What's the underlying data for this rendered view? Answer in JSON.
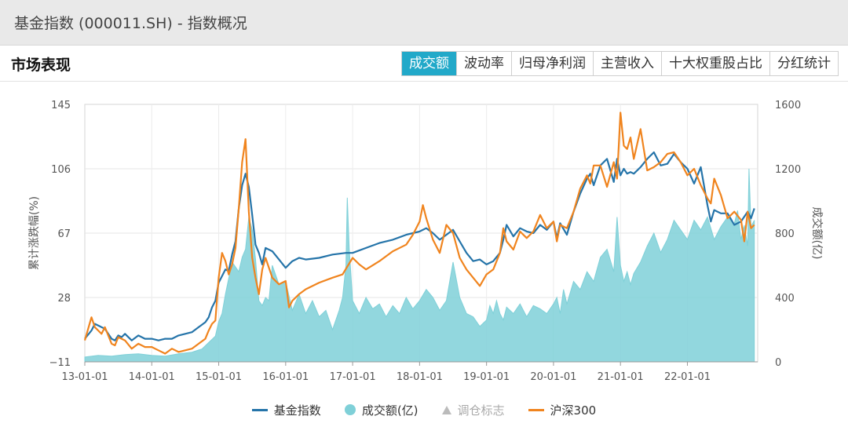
{
  "window": {
    "title": "基金指数 (000011.SH) - 指数概况"
  },
  "section": {
    "title": "市场表现"
  },
  "tabs": [
    {
      "label": "成交额",
      "active": true
    },
    {
      "label": "波动率",
      "active": false
    },
    {
      "label": "归母净利润",
      "active": false
    },
    {
      "label": "主营收入",
      "active": false
    },
    {
      "label": "十大权重股占比",
      "active": false
    },
    {
      "label": "分红统计",
      "active": false
    }
  ],
  "colors": {
    "index": "#2574a9",
    "volume": "#7fd0d8",
    "hs300": "#f0841e",
    "accent": "#22a9c9"
  },
  "legend": [
    {
      "label": "基金指数",
      "icon": "line",
      "color": "#2574a9"
    },
    {
      "label": "成交额(亿)",
      "icon": "dot",
      "color": "#7fd0d8"
    },
    {
      "label": "调仓标志",
      "icon": "triangle",
      "color": "#bbbbbb"
    },
    {
      "label": "沪深300",
      "icon": "line",
      "color": "#f0841e"
    }
  ],
  "chart_data": {
    "type": "line",
    "ylabel": "累计涨跌幅(%)",
    "ylabel_right": "成交额(亿)",
    "ylim": [
      -11,
      145
    ],
    "ylim_right": [
      0,
      1600
    ],
    "yticks_left": [
      "145",
      "106",
      "67",
      "28",
      "−11"
    ],
    "yticks_right": [
      "1600",
      "1200",
      "800",
      "400",
      "0"
    ],
    "xlim": [
      2013.0,
      2023.05
    ],
    "xticks": [
      "13-01-01",
      "14-01-01",
      "15-01-01",
      "16-01-01",
      "17-01-01",
      "18-01-01",
      "19-01-01",
      "20-01-01",
      "21-01-01",
      "22-01-01"
    ],
    "grid": true,
    "legend_position": "bottom",
    "series": [
      {
        "name": "基金指数",
        "axis": "left",
        "style": "line",
        "x": [
          2013.0,
          2013.1,
          2013.15,
          2013.25,
          2013.3,
          2013.4,
          2013.45,
          2013.5,
          2013.55,
          2013.6,
          2013.7,
          2013.8,
          2013.9,
          2014.0,
          2014.1,
          2014.2,
          2014.3,
          2014.4,
          2014.5,
          2014.6,
          2014.7,
          2014.8,
          2014.85,
          2014.9,
          2014.95,
          2015.0,
          2015.1,
          2015.15,
          2015.2,
          2015.25,
          2015.3,
          2015.35,
          2015.4,
          2015.45,
          2015.5,
          2015.55,
          2015.6,
          2015.65,
          2015.7,
          2015.8,
          2015.9,
          2016.0,
          2016.05,
          2016.1,
          2016.2,
          2016.3,
          2016.5,
          2016.7,
          2016.9,
          2017.0,
          2017.2,
          2017.4,
          2017.6,
          2017.8,
          2017.9,
          2018.0,
          2018.1,
          2018.2,
          2018.3,
          2018.4,
          2018.5,
          2018.6,
          2018.7,
          2018.8,
          2018.9,
          2019.0,
          2019.1,
          2019.2,
          2019.25,
          2019.3,
          2019.4,
          2019.5,
          2019.6,
          2019.7,
          2019.8,
          2019.9,
          2020.0,
          2020.05,
          2020.1,
          2020.2,
          2020.3,
          2020.4,
          2020.5,
          2020.55,
          2020.6,
          2020.7,
          2020.8,
          2020.9,
          2020.95,
          2021.0,
          2021.05,
          2021.1,
          2021.15,
          2021.2,
          2021.3,
          2021.4,
          2021.5,
          2021.6,
          2021.7,
          2021.8,
          2021.9,
          2022.0,
          2022.1,
          2022.2,
          2022.3,
          2022.35,
          2022.4,
          2022.5,
          2022.6,
          2022.7,
          2022.8,
          2022.9,
          2022.95,
          2023.0
        ],
        "y": [
          3,
          8,
          12,
          10,
          9,
          3,
          2,
          5,
          4,
          6,
          2,
          5,
          3,
          3,
          2,
          3,
          3,
          5,
          6,
          7,
          10,
          13,
          16,
          22,
          26,
          37,
          45,
          44,
          54,
          62,
          82,
          96,
          103,
          95,
          78,
          60,
          55,
          48,
          58,
          56,
          51,
          46,
          48,
          50,
          52,
          51,
          52,
          54,
          55,
          55,
          58,
          61,
          63,
          66,
          67,
          68,
          70,
          67,
          63,
          66,
          69,
          62,
          55,
          50,
          51,
          48,
          50,
          55,
          63,
          72,
          65,
          70,
          68,
          67,
          72,
          69,
          74,
          64,
          73,
          66,
          80,
          91,
          100,
          103,
          96,
          108,
          112,
          98,
          112,
          102,
          106,
          103,
          104,
          103,
          107,
          112,
          116,
          108,
          109,
          115,
          110,
          106,
          97,
          107,
          84,
          74,
          81,
          79,
          79,
          72,
          74,
          80,
          76,
          82
        ]
      },
      {
        "name": "成交额(亿)",
        "axis": "right",
        "style": "area",
        "x": [
          2013.0,
          2013.2,
          2013.4,
          2013.6,
          2013.8,
          2014.0,
          2014.2,
          2014.4,
          2014.6,
          2014.75,
          2014.85,
          2014.95,
          2015.0,
          2015.05,
          2015.1,
          2015.2,
          2015.3,
          2015.35,
          2015.4,
          2015.45,
          2015.5,
          2015.55,
          2015.6,
          2015.65,
          2015.7,
          2015.75,
          2015.8,
          2015.9,
          2016.0,
          2016.1,
          2016.2,
          2016.3,
          2016.4,
          2016.5,
          2016.6,
          2016.7,
          2016.8,
          2016.85,
          2016.9,
          2016.92,
          2016.95,
          2017.0,
          2017.1,
          2017.2,
          2017.3,
          2017.4,
          2017.5,
          2017.6,
          2017.7,
          2017.8,
          2017.9,
          2018.0,
          2018.1,
          2018.2,
          2018.3,
          2018.4,
          2018.5,
          2018.6,
          2018.7,
          2018.8,
          2018.9,
          2019.0,
          2019.05,
          2019.1,
          2019.15,
          2019.2,
          2019.25,
          2019.3,
          2019.4,
          2019.5,
          2019.6,
          2019.7,
          2019.8,
          2019.9,
          2020.0,
          2020.05,
          2020.1,
          2020.15,
          2020.2,
          2020.3,
          2020.4,
          2020.5,
          2020.6,
          2020.7,
          2020.8,
          2020.9,
          2020.95,
          2021.0,
          2021.05,
          2021.1,
          2021.15,
          2021.2,
          2021.3,
          2021.4,
          2021.5,
          2021.6,
          2021.7,
          2021.8,
          2021.9,
          2022.0,
          2022.1,
          2022.2,
          2022.3,
          2022.4,
          2022.5,
          2022.6,
          2022.7,
          2022.75,
          2022.8,
          2022.85,
          2022.9,
          2022.92,
          2022.95,
          2023.0
        ],
        "y": [
          30,
          40,
          35,
          45,
          50,
          40,
          35,
          50,
          60,
          80,
          120,
          160,
          250,
          300,
          420,
          620,
          560,
          650,
          700,
          900,
          820,
          640,
          380,
          350,
          400,
          380,
          600,
          480,
          500,
          320,
          420,
          300,
          380,
          280,
          320,
          200,
          320,
          400,
          600,
          1020,
          700,
          380,
          300,
          400,
          330,
          360,
          280,
          350,
          300,
          400,
          330,
          380,
          450,
          400,
          320,
          380,
          620,
          400,
          300,
          280,
          220,
          260,
          350,
          300,
          380,
          300,
          260,
          340,
          300,
          360,
          280,
          350,
          330,
          300,
          360,
          400,
          300,
          450,
          360,
          500,
          450,
          560,
          500,
          650,
          700,
          560,
          900,
          600,
          500,
          560,
          480,
          550,
          620,
          720,
          800,
          680,
          760,
          880,
          820,
          760,
          880,
          820,
          900,
          760,
          840,
          900,
          860,
          940,
          760,
          850,
          720,
          1200,
          840,
          880
        ]
      },
      {
        "name": "沪深300",
        "axis": "left",
        "style": "line",
        "x": [
          2013.0,
          2013.1,
          2013.15,
          2013.25,
          2013.3,
          2013.4,
          2013.45,
          2013.5,
          2013.6,
          2013.7,
          2013.8,
          2013.9,
          2014.0,
          2014.1,
          2014.2,
          2014.3,
          2014.4,
          2014.5,
          2014.6,
          2014.7,
          2014.8,
          2014.85,
          2014.9,
          2014.95,
          2015.0,
          2015.05,
          2015.1,
          2015.15,
          2015.2,
          2015.25,
          2015.3,
          2015.35,
          2015.4,
          2015.45,
          2015.5,
          2015.55,
          2015.6,
          2015.65,
          2015.7,
          2015.8,
          2015.9,
          2016.0,
          2016.05,
          2016.1,
          2016.2,
          2016.3,
          2016.5,
          2016.7,
          2016.85,
          2017.0,
          2017.1,
          2017.2,
          2017.4,
          2017.6,
          2017.8,
          2017.9,
          2018.0,
          2018.05,
          2018.1,
          2018.2,
          2018.3,
          2018.4,
          2018.5,
          2018.6,
          2018.7,
          2018.8,
          2018.9,
          2019.0,
          2019.1,
          2019.2,
          2019.25,
          2019.3,
          2019.4,
          2019.5,
          2019.6,
          2019.7,
          2019.8,
          2019.9,
          2020.0,
          2020.05,
          2020.1,
          2020.2,
          2020.3,
          2020.4,
          2020.5,
          2020.55,
          2020.6,
          2020.7,
          2020.8,
          2020.9,
          2020.95,
          2021.0,
          2021.05,
          2021.1,
          2021.15,
          2021.2,
          2021.3,
          2021.4,
          2021.5,
          2021.6,
          2021.7,
          2021.8,
          2021.9,
          2022.0,
          2022.1,
          2022.2,
          2022.3,
          2022.35,
          2022.4,
          2022.5,
          2022.6,
          2022.7,
          2022.8,
          2022.85,
          2022.9,
          2022.95,
          2023.0
        ],
        "y": [
          2,
          16,
          10,
          6,
          10,
          0,
          -1,
          4,
          2,
          -3,
          0,
          -2,
          -2,
          -4,
          -6,
          -3,
          -5,
          -4,
          -3,
          0,
          3,
          8,
          12,
          14,
          40,
          55,
          50,
          42,
          48,
          58,
          82,
          110,
          124,
          80,
          52,
          40,
          30,
          45,
          52,
          40,
          36,
          38,
          22,
          26,
          30,
          33,
          37,
          40,
          42,
          52,
          48,
          45,
          50,
          56,
          60,
          66,
          74,
          84,
          76,
          63,
          55,
          72,
          67,
          52,
          45,
          40,
          35,
          42,
          45,
          55,
          70,
          62,
          57,
          68,
          64,
          68,
          78,
          70,
          74,
          62,
          72,
          70,
          80,
          94,
          102,
          97,
          108,
          108,
          95,
          110,
          100,
          140,
          120,
          118,
          125,
          112,
          130,
          105,
          107,
          110,
          115,
          116,
          110,
          102,
          106,
          96,
          88,
          85,
          100,
          90,
          76,
          80,
          75,
          62,
          80,
          70,
          72
        ]
      }
    ]
  }
}
